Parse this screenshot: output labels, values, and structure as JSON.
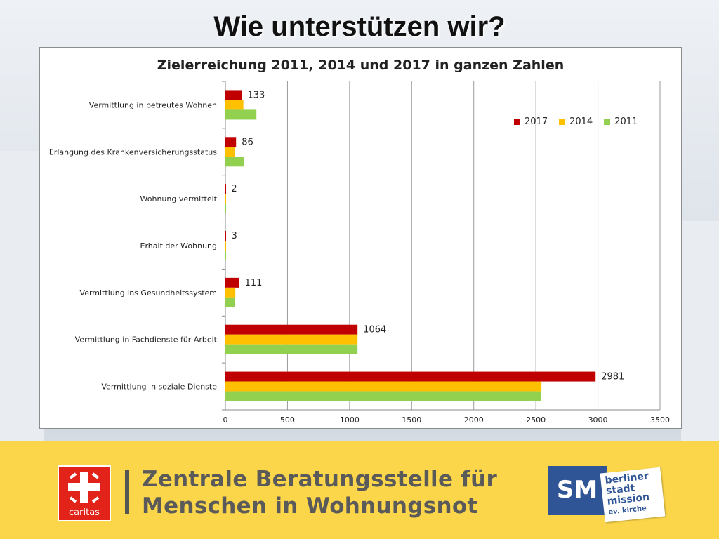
{
  "slide": {
    "title": "Wie unterstützen wir?"
  },
  "chart_data": {
    "type": "bar",
    "orientation": "horizontal",
    "title": "Zielerreichung 2011, 2014 und 2017 in ganzen Zahlen",
    "xlim": [
      0,
      3500
    ],
    "x_ticks": [
      "0",
      "500",
      "1000",
      "1500",
      "2000",
      "2500",
      "3000",
      "3500"
    ],
    "grid": true,
    "legend_position": "top-right",
    "categories": [
      "Vermittlung in betreutes Wohnen",
      "Erlangung des Krankenversicherungsstatus",
      "Wohnung vermittelt",
      "Erhalt der Wohnung",
      "Vermittlung ins Gesundheitssystem",
      "Vermittlung in Fachdienste für Arbeit",
      "Vermittlung in soziale Dienste"
    ],
    "series": [
      {
        "name": "2017",
        "color": "#c00000",
        "values": [
          133,
          86,
          2,
          3,
          111,
          1064,
          2981
        ],
        "data_labels": [
          "133",
          "86",
          "2",
          "3",
          "111",
          "1064",
          "2981"
        ]
      },
      {
        "name": "2014",
        "color": "#ffc000",
        "values": [
          145,
          75,
          3,
          3,
          80,
          1064,
          2545
        ]
      },
      {
        "name": "2011",
        "color": "#92d050",
        "values": [
          250,
          150,
          5,
          5,
          75,
          1064,
          2540
        ]
      }
    ]
  },
  "footer": {
    "line1": "Zentrale Beratungsstelle für",
    "line2": "Menschen in Wohnungsnot",
    "caritas_label": "caritas",
    "sm_label": "SM",
    "mission_lines": [
      "berliner",
      "stadt",
      "mission",
      "ev. kirche"
    ]
  }
}
